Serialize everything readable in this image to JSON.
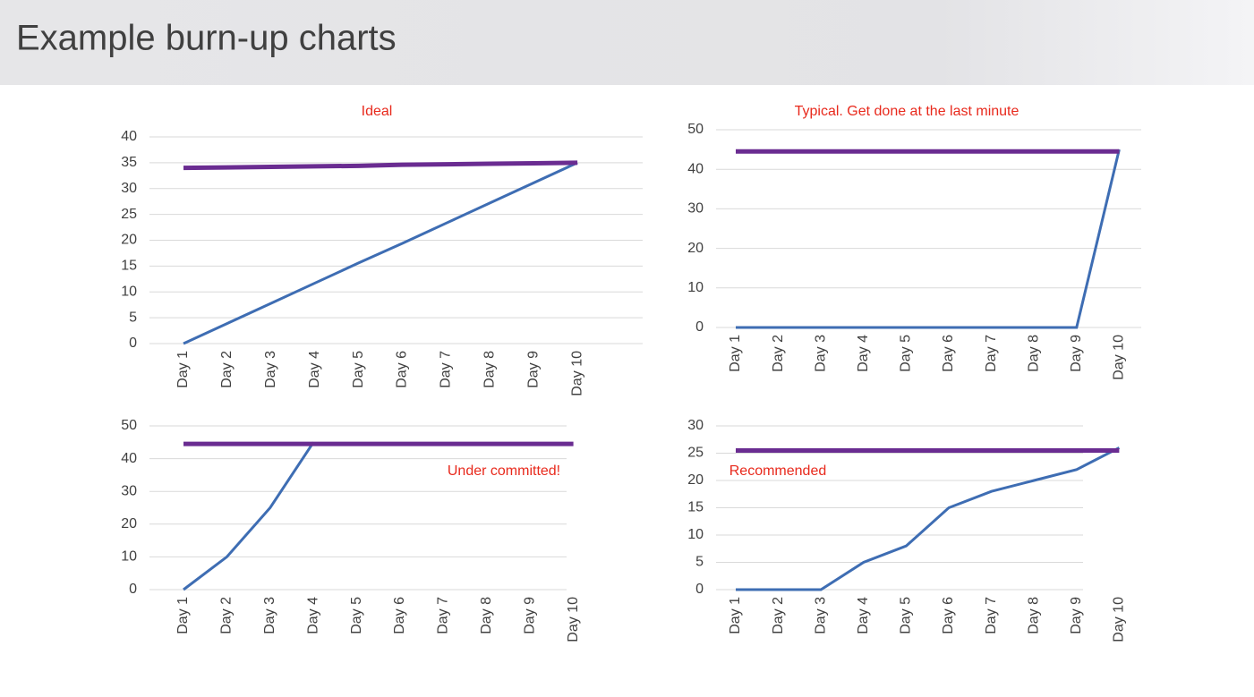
{
  "header": {
    "title": "Example burn-up charts"
  },
  "chart_data": [
    {
      "type": "line",
      "title": "Ideal",
      "categories": [
        "Day 1",
        "Day 2",
        "Day 3",
        "Day 4",
        "Day 5",
        "Day 6",
        "Day 7",
        "Day 8",
        "Day 9",
        "Day 10"
      ],
      "series": [
        {
          "color": "#3e6db3",
          "values": [
            0,
            3.9,
            7.8,
            11.7,
            15.6,
            19.4,
            23.3,
            27.2,
            31.1,
            35
          ]
        },
        {
          "color": "#6a2c91",
          "values": [
            34,
            34.1,
            34.2,
            34.3,
            34.4,
            34.6,
            34.7,
            34.8,
            34.9,
            35
          ]
        }
      ],
      "ylim": [
        0,
        40
      ],
      "yticks": [
        0,
        5,
        10,
        15,
        20,
        25,
        30,
        35,
        40
      ],
      "grid": true
    },
    {
      "type": "line",
      "title": "Typical. Get done at the last minute",
      "categories": [
        "Day 1",
        "Day 2",
        "Day 3",
        "Day 4",
        "Day 5",
        "Day 6",
        "Day 7",
        "Day 8",
        "Day 9",
        "Day 10"
      ],
      "series": [
        {
          "color": "#3e6db3",
          "values": [
            0,
            0,
            0,
            0,
            0,
            0,
            0,
            0,
            0,
            45
          ]
        },
        {
          "color": "#6a2c91",
          "values": [
            44.5,
            44.5,
            44.5,
            44.5,
            44.5,
            44.5,
            44.5,
            44.5,
            44.5,
            44.5
          ]
        }
      ],
      "ylim": [
        0,
        50
      ],
      "yticks": [
        0,
        10,
        20,
        30,
        40,
        50
      ],
      "grid": true
    },
    {
      "type": "line",
      "annotation": "Under committed!",
      "categories": [
        "Day 1",
        "Day 2",
        "Day 3",
        "Day 4",
        "Day 5",
        "Day 6",
        "Day 7",
        "Day 8",
        "Day 9",
        "Day 10"
      ],
      "series": [
        {
          "color": "#3e6db3",
          "values": [
            0,
            10,
            25,
            45,
            null,
            null,
            null,
            null,
            null,
            null
          ]
        },
        {
          "color": "#6a2c91",
          "values": [
            44.5,
            44.5,
            44.5,
            44.5,
            44.5,
            44.5,
            44.5,
            44.5,
            44.5,
            44.5
          ]
        }
      ],
      "ylim": [
        0,
        50
      ],
      "yticks": [
        0,
        10,
        20,
        30,
        40,
        50
      ],
      "grid": true
    },
    {
      "type": "line",
      "annotation": "Recommended",
      "categories": [
        "Day 1",
        "Day 2",
        "Day 3",
        "Day 4",
        "Day 5",
        "Day 6",
        "Day 7",
        "Day 8",
        "Day 9",
        "Day 10"
      ],
      "series": [
        {
          "color": "#3e6db3",
          "values": [
            0,
            0,
            0,
            5,
            8,
            15,
            18,
            20,
            22,
            26
          ]
        },
        {
          "color": "#6a2c91",
          "values": [
            25.5,
            25.5,
            25.5,
            25.5,
            25.5,
            25.5,
            25.5,
            25.5,
            25.5,
            25.5
          ]
        }
      ],
      "ylim": [
        0,
        30
      ],
      "yticks": [
        0,
        5,
        10,
        15,
        20,
        25,
        30
      ],
      "grid": true
    }
  ]
}
